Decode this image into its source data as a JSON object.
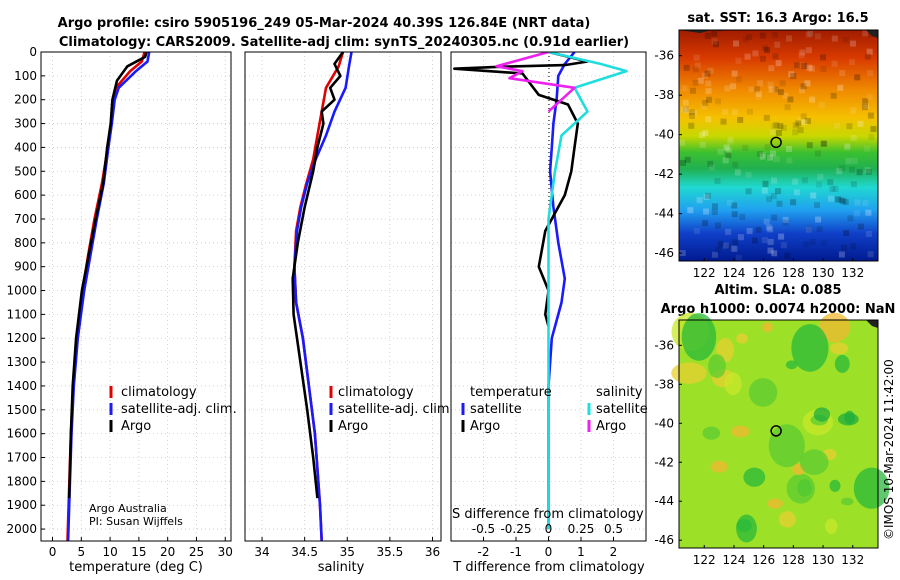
{
  "header": {
    "line1": "Argo profile: csiro 5905196_249 05-Mar-2024 40.39S 126.84E (NRT data)",
    "line2": "Climatology: CARS2009. Satellite-adj clim: synTS_20240305.nc (0.91d earlier)"
  },
  "colors": {
    "climatology": "#e00000",
    "satellite": "#1a1aff",
    "argo": "#000000",
    "sal_satellite": "#22dddd",
    "sal_argo": "#ee22ee"
  },
  "chart_data": [
    {
      "type": "line",
      "name": "temperature-profile",
      "xlabel": "temperature (deg C)",
      "xlim": [
        -2,
        31
      ],
      "xticks": [
        "0",
        "5",
        "10",
        "15",
        "20",
        "25",
        "30"
      ],
      "ylim": [
        0,
        2050
      ],
      "yticks": [
        "0",
        "100",
        "200",
        "300",
        "400",
        "500",
        "600",
        "700",
        "800",
        "900",
        "1000",
        "1100",
        "1200",
        "1300",
        "1400",
        "1500",
        "1600",
        "1700",
        "1800",
        "1900",
        "2000"
      ],
      "grid": true,
      "legend_position": "bottom-right",
      "legend": [
        "climatology",
        "satellite-adj. clim.",
        "Argo"
      ],
      "series": [
        {
          "name": "climatology",
          "x": [
            16,
            15.5,
            13.5,
            11,
            10.6,
            10.2,
            9.6,
            8.6,
            7.3,
            6.2,
            5.2,
            4.2,
            3.6,
            3.2,
            2.8,
            2.6
          ],
          "depth": [
            0,
            40,
            80,
            150,
            200,
            300,
            400,
            550,
            700,
            850,
            1000,
            1200,
            1400,
            1600,
            1900,
            2050
          ]
        },
        {
          "name": "satellite-adj. clim.",
          "x": [
            16.8,
            16.5,
            14.5,
            11.5,
            10.8,
            10.3,
            9.7,
            8.9,
            7.7,
            6.6,
            5.5,
            4.4,
            3.7,
            3.3,
            2.9,
            2.7
          ],
          "depth": [
            0,
            40,
            80,
            150,
            200,
            300,
            400,
            550,
            700,
            850,
            1000,
            1200,
            1400,
            1600,
            1900,
            2050
          ]
        },
        {
          "name": "Argo",
          "x": [
            16.3,
            16.1,
            13,
            11.2,
            10.4,
            10.1,
            9.5,
            8.8,
            7.5,
            6.3,
            5.1,
            4.1,
            3.5,
            3.2,
            2.9
          ],
          "depth": [
            0,
            20,
            60,
            120,
            200,
            300,
            400,
            550,
            700,
            850,
            1000,
            1200,
            1400,
            1600,
            1870
          ]
        }
      ]
    },
    {
      "type": "line",
      "name": "salinity-profile",
      "xlabel": "salinity",
      "xlim": [
        33.8,
        36.1
      ],
      "xticks": [
        "34",
        "34.5",
        "35",
        "35.5",
        "36"
      ],
      "ylim": [
        0,
        2050
      ],
      "grid": true,
      "legend_position": "bottom-right",
      "legend": [
        "climatology",
        "satellite-adj. clim.",
        "Argo"
      ],
      "series": [
        {
          "name": "climatology",
          "x": [
            34.95,
            34.9,
            34.75,
            34.7,
            34.65,
            34.6,
            34.52,
            34.45,
            34.4,
            34.38,
            34.4,
            34.48,
            34.55,
            34.62,
            34.68,
            34.7
          ],
          "depth": [
            0,
            60,
            150,
            250,
            350,
            450,
            550,
            650,
            750,
            900,
            1050,
            1200,
            1400,
            1600,
            1900,
            2050
          ]
        },
        {
          "name": "satellite-adj. clim.",
          "x": [
            35.05,
            35.02,
            34.98,
            34.85,
            34.75,
            34.63,
            34.53,
            34.46,
            34.41,
            34.38,
            34.4,
            34.48,
            34.55,
            34.62,
            34.68,
            34.7
          ],
          "depth": [
            0,
            60,
            150,
            250,
            350,
            450,
            550,
            650,
            750,
            900,
            1050,
            1200,
            1400,
            1600,
            1900,
            2050
          ]
        },
        {
          "name": "Argo",
          "x": [
            34.95,
            34.85,
            34.92,
            34.8,
            34.85,
            34.7,
            34.72,
            34.65,
            34.6,
            34.5,
            34.42,
            34.36,
            34.37,
            34.45,
            34.53,
            34.6,
            34.65
          ],
          "depth": [
            0,
            50,
            100,
            150,
            200,
            250,
            300,
            400,
            500,
            650,
            800,
            950,
            1100,
            1300,
            1500,
            1700,
            1870
          ]
        }
      ]
    },
    {
      "type": "line",
      "name": "difference-profile",
      "xlabel": "T difference from climatology",
      "xlabel2": "S difference from climatology",
      "xlim": [
        -3,
        3
      ],
      "xticks": [
        "-2",
        "-1",
        "0",
        "1",
        "2"
      ],
      "xticks2": [
        "-0.5",
        "-0.25",
        "0",
        "0.25",
        "0.5"
      ],
      "ylim": [
        0,
        2050
      ],
      "grid": true,
      "legend_titles": [
        "temperature",
        "salinity"
      ],
      "legend": [
        "satellite",
        "Argo",
        "satellite",
        "Argo"
      ],
      "series": [
        {
          "name": "temperature satellite",
          "x": [
            0.8,
            0.5,
            0.3,
            0.25,
            0.15,
            0.1,
            0.05,
            0.15,
            0.3,
            0.5,
            0.4,
            0.3,
            0.1,
            0,
            0,
            0
          ],
          "depth": [
            0,
            50,
            100,
            200,
            300,
            400,
            500,
            650,
            800,
            950,
            1050,
            1100,
            1200,
            1400,
            1700,
            2000
          ]
        },
        {
          "name": "temperature Argo",
          "x": [
            0,
            1.2,
            0.5,
            -1.5,
            -2.9,
            -0.8,
            -0.3,
            0.6,
            0.9,
            0.8,
            0.7,
            0.5,
            0.3,
            -0.1,
            -0.3,
            0,
            -0.1,
            0
          ],
          "depth": [
            0,
            40,
            55,
            62,
            70,
            90,
            180,
            220,
            300,
            400,
            500,
            600,
            650,
            750,
            900,
            1000,
            1100,
            1150
          ]
        },
        {
          "name": "salinity satellite",
          "x": [
            0,
            0.4,
            0.6,
            0.2,
            0.3,
            0.1,
            0.05,
            0,
            0,
            0
          ],
          "depth": [
            0,
            50,
            80,
            150,
            250,
            350,
            500,
            700,
            1200,
            2000
          ]
        },
        {
          "name": "salinity Argo",
          "x": [
            0,
            -0.4,
            -0.2,
            -0.3,
            0.2,
            0.1,
            0
          ],
          "depth": [
            0,
            60,
            80,
            110,
            150,
            200,
            250
          ]
        }
      ]
    },
    {
      "type": "heatmap",
      "name": "sst-map",
      "title": "sat. SST: 16.3 Argo: 16.5",
      "xticks": [
        "122",
        "124",
        "126",
        "128",
        "130",
        "132"
      ],
      "yticks": [
        "-36",
        "-38",
        "-40",
        "-42",
        "-44",
        "-46"
      ],
      "xlim": [
        120.3,
        133.7
      ],
      "ylim": [
        -46.4,
        -34.7
      ],
      "argo_position": [
        126.84,
        -40.39
      ]
    },
    {
      "type": "heatmap",
      "name": "sla-map",
      "title": "Altim. SLA: 0.085",
      "subtitle": "Argo h1000: 0.0074 h2000: NaN",
      "xticks": [
        "122",
        "124",
        "126",
        "128",
        "130",
        "132"
      ],
      "yticks": [
        "-36",
        "-38",
        "-40",
        "-42",
        "-44",
        "-46"
      ],
      "xlim": [
        120.3,
        133.7
      ],
      "ylim": [
        -46.4,
        -34.7
      ],
      "argo_position": [
        126.84,
        -40.39
      ]
    }
  ],
  "credits": {
    "org": "Argo Australia",
    "pi": "PI: Susan Wijffels",
    "stamp": "©IMOS 10-Mar-2024 11:42:00"
  }
}
